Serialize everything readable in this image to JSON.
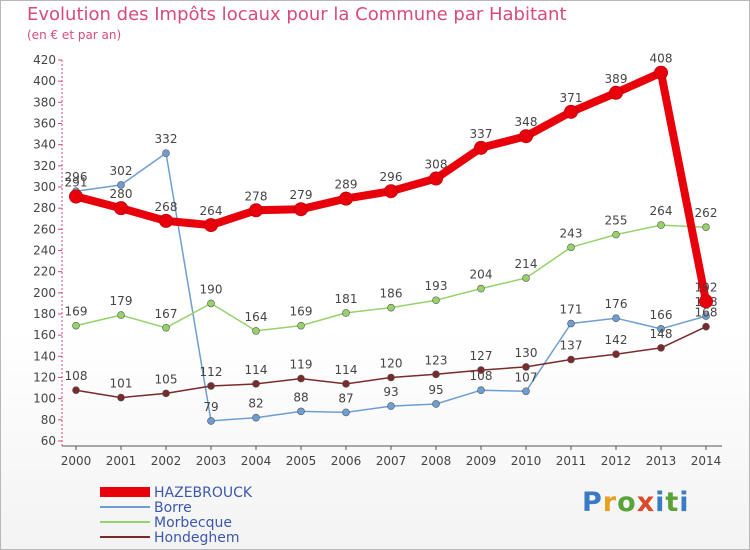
{
  "title": "Evolution des Impôts locaux pour la Commune par Habitant",
  "subtitle": "(en € et par an)",
  "logo": {
    "text": "Proxiti",
    "colors": [
      "#3a7cc4",
      "#e8a020",
      "#5aa33a",
      "#d94a2a"
    ]
  },
  "chart_data": {
    "type": "line",
    "x": [
      2000,
      2001,
      2002,
      2003,
      2004,
      2005,
      2006,
      2007,
      2008,
      2009,
      2010,
      2011,
      2012,
      2013,
      2014
    ],
    "ylim": [
      60,
      420
    ],
    "yticks": [
      60,
      80,
      100,
      120,
      140,
      160,
      180,
      200,
      220,
      240,
      260,
      280,
      300,
      320,
      340,
      360,
      380,
      400,
      420
    ],
    "grid": false,
    "legend_position": "bottom-left",
    "series": [
      {
        "name": "HAZEBROUCK",
        "color": "#e8000b",
        "values": [
          291,
          280,
          268,
          264,
          278,
          279,
          289,
          296,
          308,
          337,
          348,
          371,
          389,
          408,
          192
        ]
      },
      {
        "name": "Borre",
        "color": "#6e9ed1",
        "values": [
          296,
          302,
          332,
          79,
          82,
          88,
          87,
          93,
          95,
          108,
          107,
          171,
          176,
          166,
          178
        ]
      },
      {
        "name": "Morbecque",
        "color": "#96d26a",
        "values": [
          169,
          179,
          167,
          190,
          164,
          169,
          181,
          186,
          193,
          204,
          214,
          243,
          255,
          264,
          262
        ]
      },
      {
        "name": "Hondeghem",
        "color": "#7a2a2a",
        "values": [
          108,
          101,
          105,
          112,
          114,
          119,
          114,
          120,
          123,
          127,
          130,
          137,
          142,
          148,
          168
        ]
      }
    ]
  }
}
